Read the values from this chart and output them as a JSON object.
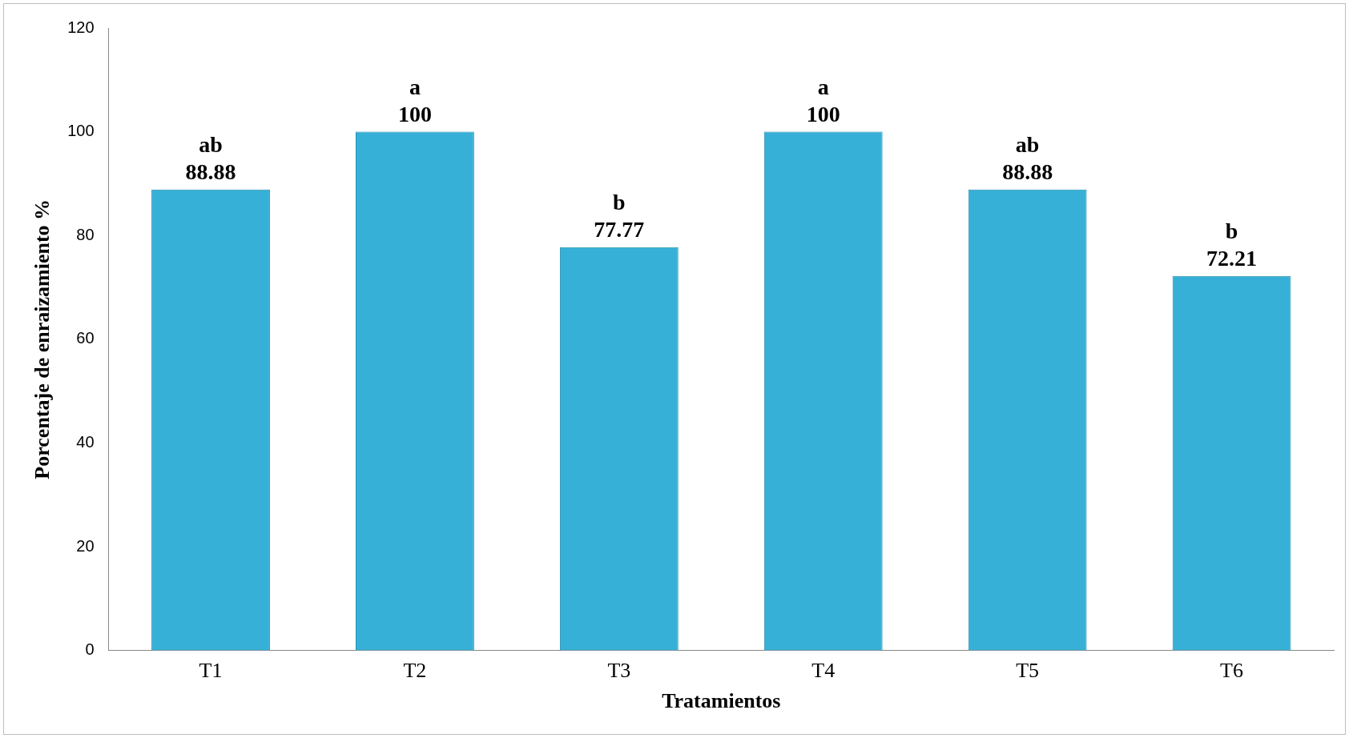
{
  "chart_data": {
    "type": "bar",
    "xlabel": "Tratamientos",
    "ylabel": "Porcentaje de enraizamiento %",
    "categories": [
      "T1",
      "T2",
      "T3",
      "T4",
      "T5",
      "T6"
    ],
    "values": [
      88.88,
      100,
      77.77,
      100,
      88.88,
      72.21
    ],
    "color": "#36b0d6",
    "ylim": [
      0,
      120
    ],
    "yticks": [
      0,
      20,
      40,
      60,
      80,
      100,
      120
    ],
    "grid": false,
    "legend": false,
    "data_labels": true,
    "annotations": [
      {
        "text": "ab",
        "x": "T1",
        "y": 88.88
      },
      {
        "text": "a",
        "x": "T2",
        "y": 100
      },
      {
        "text": "b",
        "x": "T3",
        "y": 77.77
      },
      {
        "text": "a",
        "x": "T4",
        "y": 100
      },
      {
        "text": "ab",
        "x": "T5",
        "y": 88.88
      },
      {
        "text": "b",
        "x": "T6",
        "y": 72.21
      }
    ]
  }
}
